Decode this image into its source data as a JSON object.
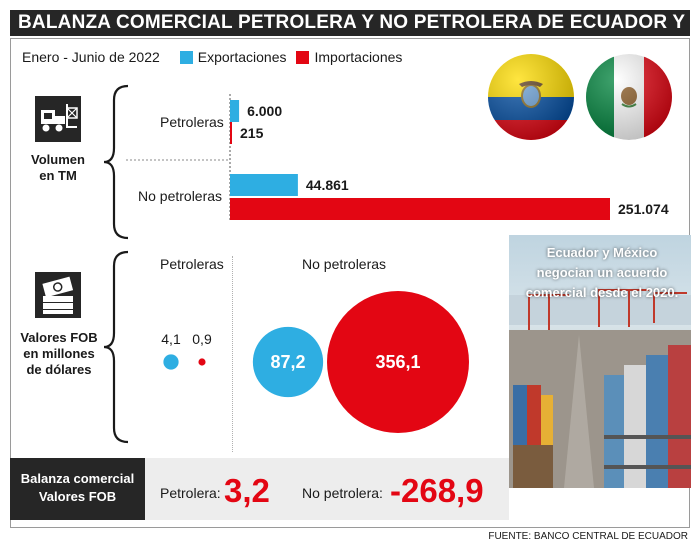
{
  "title": "BALANZA COMERCIAL PETROLERA Y NO PETROLERA DE ECUADOR Y MÉXICO",
  "legend": {
    "period": "Enero - Junio de 2022",
    "items": [
      {
        "label": "Exportaciones",
        "color": "#2eaee2"
      },
      {
        "label": "Importaciones",
        "color": "#e30613"
      }
    ]
  },
  "flags": [
    {
      "country": "Ecuador",
      "icon": "ecuador-flag-icon",
      "colors": [
        "#ffdd00",
        "#034ea2",
        "#e30613"
      ]
    },
    {
      "country": "México",
      "icon": "mexico-flag-icon",
      "colors": [
        "#00843d",
        "#ffffff",
        "#e30613"
      ]
    }
  ],
  "volume": {
    "label_line1": "Volumen",
    "label_line2": "en TM",
    "icon": "forklift-icon"
  },
  "fob": {
    "label_line1": "Valores FOB",
    "label_line2": "en millones",
    "label_line3": "de dólares",
    "icon": "money-stack-icon",
    "petroleras_heading": "Petroleras",
    "no_petroleras_heading": "No petroleras"
  },
  "photo_caption": "Ecuador y México negocian un acuerdo comercial desde el 2020.",
  "balance": {
    "box_line1": "Balanza comercial",
    "box_line2": "Valores FOB",
    "petrolera_label": "Petrolera:",
    "petrolera_value": "3,2",
    "no_petrolera_label": "No petrolera:",
    "no_petrolera_value": "-268,9"
  },
  "source": "FUENTE: BANCO CENTRAL DE ECUADOR",
  "chart_data": [
    {
      "type": "bar",
      "orientation": "horizontal",
      "title": "Volumen en TM",
      "categories": [
        "Petroleras",
        "No petroleras"
      ],
      "series": [
        {
          "name": "Exportaciones",
          "values": [
            6000,
            44861
          ],
          "labels": [
            "6.000",
            "44.861"
          ],
          "color": "#2eaee2"
        },
        {
          "name": "Importaciones",
          "values": [
            215,
            251074
          ],
          "labels": [
            "215",
            "251.074"
          ],
          "color": "#e30613"
        }
      ]
    },
    {
      "type": "bubble",
      "title": "Valores FOB en millones de dólares",
      "categories": [
        "Petroleras",
        "No petroleras"
      ],
      "series": [
        {
          "name": "Exportaciones",
          "values": [
            4.1,
            87.2
          ],
          "labels": [
            "4,1",
            "87,2"
          ],
          "color": "#2eaee2"
        },
        {
          "name": "Importaciones",
          "values": [
            0.9,
            356.1
          ],
          "labels": [
            "0,9",
            "356,1"
          ],
          "color": "#e30613"
        }
      ]
    }
  ]
}
